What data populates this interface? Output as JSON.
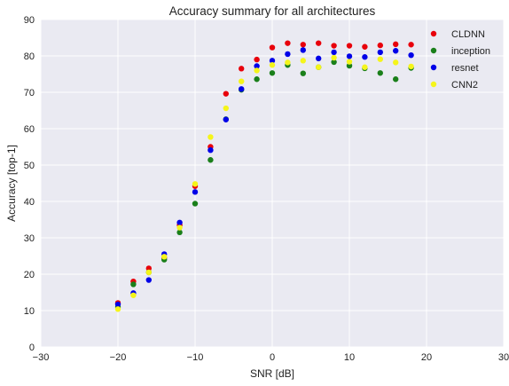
{
  "chart_data": {
    "type": "scatter",
    "title": "Accuracy summary for all architectures",
    "xlabel": "SNR [dB]",
    "ylabel": "Accuracy [top-1]",
    "xlim": [
      -30,
      30
    ],
    "ylim": [
      0,
      90
    ],
    "xticks": [
      -30,
      -20,
      -10,
      0,
      10,
      20,
      30
    ],
    "yticks": [
      0,
      10,
      20,
      30,
      40,
      50,
      60,
      70,
      80,
      90
    ],
    "grid": true,
    "legend_position": "top-right",
    "x": [
      -20,
      -18,
      -16,
      -14,
      -12,
      -10,
      -8,
      -6,
      -4,
      -2,
      0,
      2,
      4,
      6,
      8,
      10,
      12,
      14,
      16,
      18
    ],
    "series": [
      {
        "name": "CLDNN",
        "color": "#e8000b",
        "values": [
          12.1,
          18.0,
          21.6,
          24.5,
          33.5,
          44.2,
          55.0,
          69.6,
          76.5,
          79.0,
          82.3,
          83.5,
          83.1,
          83.5,
          82.8,
          82.8,
          82.5,
          82.9,
          83.2,
          83.1
        ]
      },
      {
        "name": "inception",
        "color": "#1a7f1a",
        "values": [
          11.0,
          17.2,
          20.5,
          24.0,
          31.5,
          39.4,
          51.4,
          62.6,
          70.7,
          73.6,
          75.3,
          77.5,
          75.2,
          76.9,
          78.3,
          77.3,
          76.6,
          75.3,
          73.6,
          76.7
        ]
      },
      {
        "name": "resnet",
        "color": "#0000e8",
        "values": [
          11.7,
          14.8,
          18.4,
          25.5,
          34.2,
          42.6,
          54.1,
          62.5,
          70.9,
          77.2,
          78.7,
          80.5,
          81.6,
          79.3,
          81.0,
          79.9,
          79.7,
          81.0,
          81.4,
          80.2
        ]
      },
      {
        "name": "CNN2",
        "color": "#f5f51a",
        "values": [
          10.4,
          14.2,
          20.5,
          24.8,
          32.8,
          44.8,
          57.7,
          65.6,
          73.0,
          76.0,
          77.5,
          78.2,
          78.7,
          76.9,
          79.5,
          78.4,
          76.9,
          79.1,
          78.2,
          77.1
        ]
      }
    ]
  }
}
